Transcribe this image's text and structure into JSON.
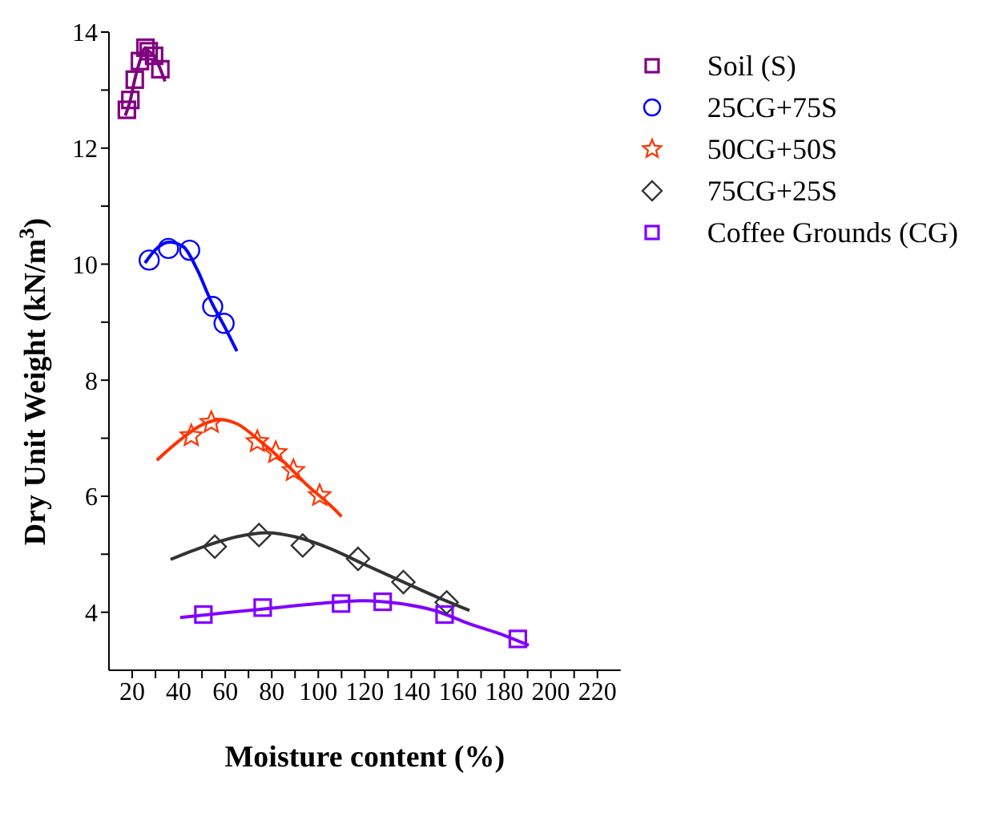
{
  "chart_data": {
    "type": "scatter",
    "xlabel": "Moisture content (%)",
    "ylabel": "Dry Unit Weight (kN/m$^{3}$)",
    "xlim": [
      10,
      230
    ],
    "ylim": [
      3,
      14
    ],
    "xticks": [
      20,
      {
        "value": 30,
        "label": null
      },
      40,
      {
        "value": 50,
        "label": null
      },
      60,
      {
        "value": 70,
        "label": null
      },
      80,
      {
        "value": 90,
        "label": null
      },
      100,
      {
        "value": 110,
        "label": null
      },
      120,
      {
        "value": 130,
        "label": null
      },
      140,
      {
        "value": 150,
        "label": null
      },
      160,
      {
        "value": 170,
        "label": null
      },
      180,
      {
        "value": 190,
        "label": null
      },
      200,
      {
        "value": 210,
        "label": null
      },
      220
    ],
    "yticks": [
      4,
      {
        "value": 5,
        "label": null
      },
      6,
      {
        "value": 7,
        "label": null
      },
      8,
      {
        "value": 9,
        "label": null
      },
      10,
      {
        "value": 11,
        "label": null
      },
      12,
      {
        "value": 13,
        "label": null
      },
      14
    ],
    "grid": false,
    "legend": "top right",
    "series": [
      {
        "name": "Soil (S)",
        "marker": "square",
        "color": "#800080",
        "x": [
          17.7,
          19.2,
          21.1,
          23.3,
          25.7,
          27.1,
          29.4,
          32.1
        ],
        "values": [
          12.66,
          12.83,
          13.18,
          13.5,
          13.73,
          13.67,
          13.59,
          13.36
        ]
      },
      {
        "type": "line",
        "color": "#800080",
        "x": [
          17,
          19.2,
          21.1,
          23.3,
          25.7,
          27.1,
          29.4,
          32.1,
          34.1
        ],
        "values": [
          12.56,
          12.83,
          13.18,
          13.5,
          13.73,
          13.67,
          13.59,
          13.36,
          13.15
        ]
      },
      {
        "name": "25CG+75S",
        "marker": "circle",
        "color": "#0000ff",
        "x": [
          27.3,
          35.6,
          44.7,
          54.6,
          59.5
        ],
        "values": [
          10.07,
          10.27,
          10.24,
          9.27,
          8.98
        ]
      },
      {
        "type": "line",
        "color": "#0000ff",
        "x": [
          25.5,
          30,
          36,
          42,
          48,
          54,
          60,
          65
        ],
        "values": [
          10.02,
          10.25,
          10.38,
          10.3,
          9.9,
          9.35,
          8.9,
          8.5
        ]
      },
      {
        "name": "50CG+50S",
        "marker": "star",
        "color": "#ff3300",
        "x": [
          45.4,
          54,
          73.8,
          81.7,
          89.3,
          100.6
        ],
        "values": [
          7.04,
          7.27,
          6.94,
          6.75,
          6.44,
          6.01
        ]
      },
      {
        "type": "line",
        "color": "#ff3300",
        "x": [
          30.6,
          40,
          50,
          58,
          65,
          75,
          85,
          95,
          105,
          110
        ],
        "values": [
          6.62,
          6.95,
          7.23,
          7.32,
          7.25,
          6.95,
          6.6,
          6.2,
          5.85,
          5.65
        ]
      },
      {
        "name": "75CG+25S",
        "marker": "diamond",
        "color": "#333333",
        "x": [
          55.5,
          74.5,
          93.3,
          117.1,
          136.6,
          155.2
        ],
        "values": [
          5.13,
          5.33,
          5.15,
          4.92,
          4.52,
          4.17
        ]
      },
      {
        "type": "line",
        "color": "#333333",
        "x": [
          36.5,
          50,
          65,
          78,
          90,
          105,
          120,
          135,
          150,
          165
        ],
        "values": [
          4.91,
          5.12,
          5.3,
          5.37,
          5.3,
          5.1,
          4.82,
          4.55,
          4.28,
          4.03
        ]
      },
      {
        "name": "Coffee Grounds (CG)",
        "marker": "square",
        "color": "#8000ff",
        "x": [
          50.6,
          76.1,
          109.8,
          127.7,
          154.3,
          185.8
        ],
        "values": [
          3.96,
          4.08,
          4.15,
          4.18,
          3.96,
          3.54
        ]
      },
      {
        "type": "line",
        "color": "#8000ff",
        "x": [
          40.6,
          60,
          80,
          100,
          119,
          135,
          150,
          165,
          180,
          190.5
        ],
        "values": [
          3.91,
          3.99,
          4.07,
          4.15,
          4.2,
          4.15,
          4.03,
          3.8,
          3.6,
          3.43
        ]
      }
    ]
  }
}
